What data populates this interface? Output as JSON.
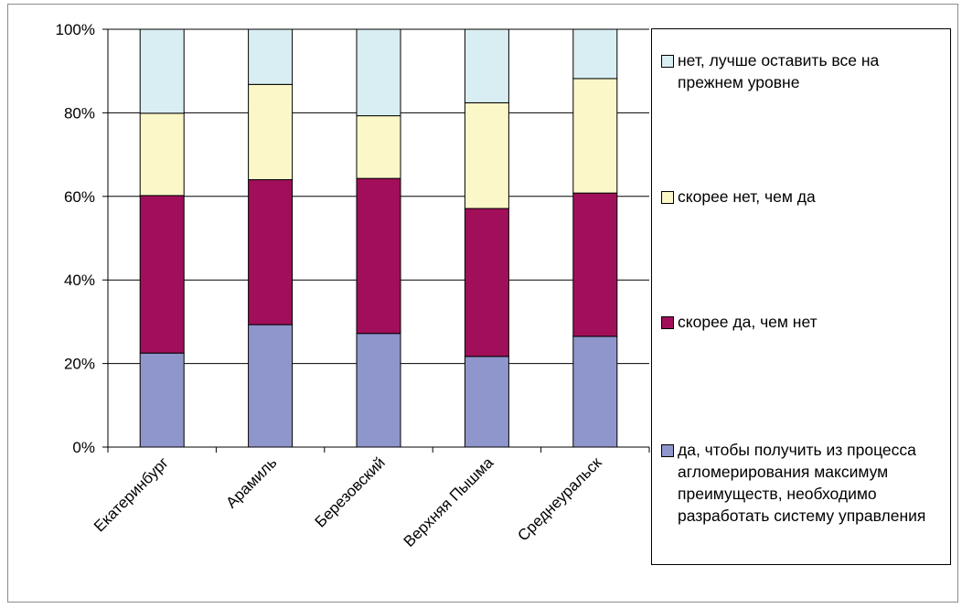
{
  "chart_data": {
    "type": "bar",
    "stacked": true,
    "percent": true,
    "categories": [
      "Екатеринбург",
      "Арамиль",
      "Березовский",
      "Верхняя Пышма",
      "Среднеуральск"
    ],
    "yticks": [
      "0%",
      "20%",
      "40%",
      "60%",
      "80%",
      "100%"
    ],
    "ylim": [
      0,
      100
    ],
    "grid": true,
    "legend_position": "right",
    "series": [
      {
        "name": "да, чтобы получить из процесса агломерирования максимум преимуществ, необходимо разработать систему управления",
        "color": "#8f96cc",
        "values": [
          22.5,
          29.3,
          27.2,
          21.7,
          26.5
        ]
      },
      {
        "name": "скорее да, чем нет",
        "color": "#a10f5a",
        "values": [
          37.7,
          34.7,
          37.1,
          35.4,
          34.3
        ]
      },
      {
        "name": "скорее нет, чем да",
        "color": "#fbf7c8",
        "values": [
          19.7,
          22.8,
          15.0,
          25.3,
          27.4
        ]
      },
      {
        "name": "нет, лучше оставить все на прежнем уровне",
        "color": "#d9eef2",
        "values": [
          20.1,
          13.2,
          20.7,
          17.6,
          11.8
        ]
      }
    ]
  }
}
